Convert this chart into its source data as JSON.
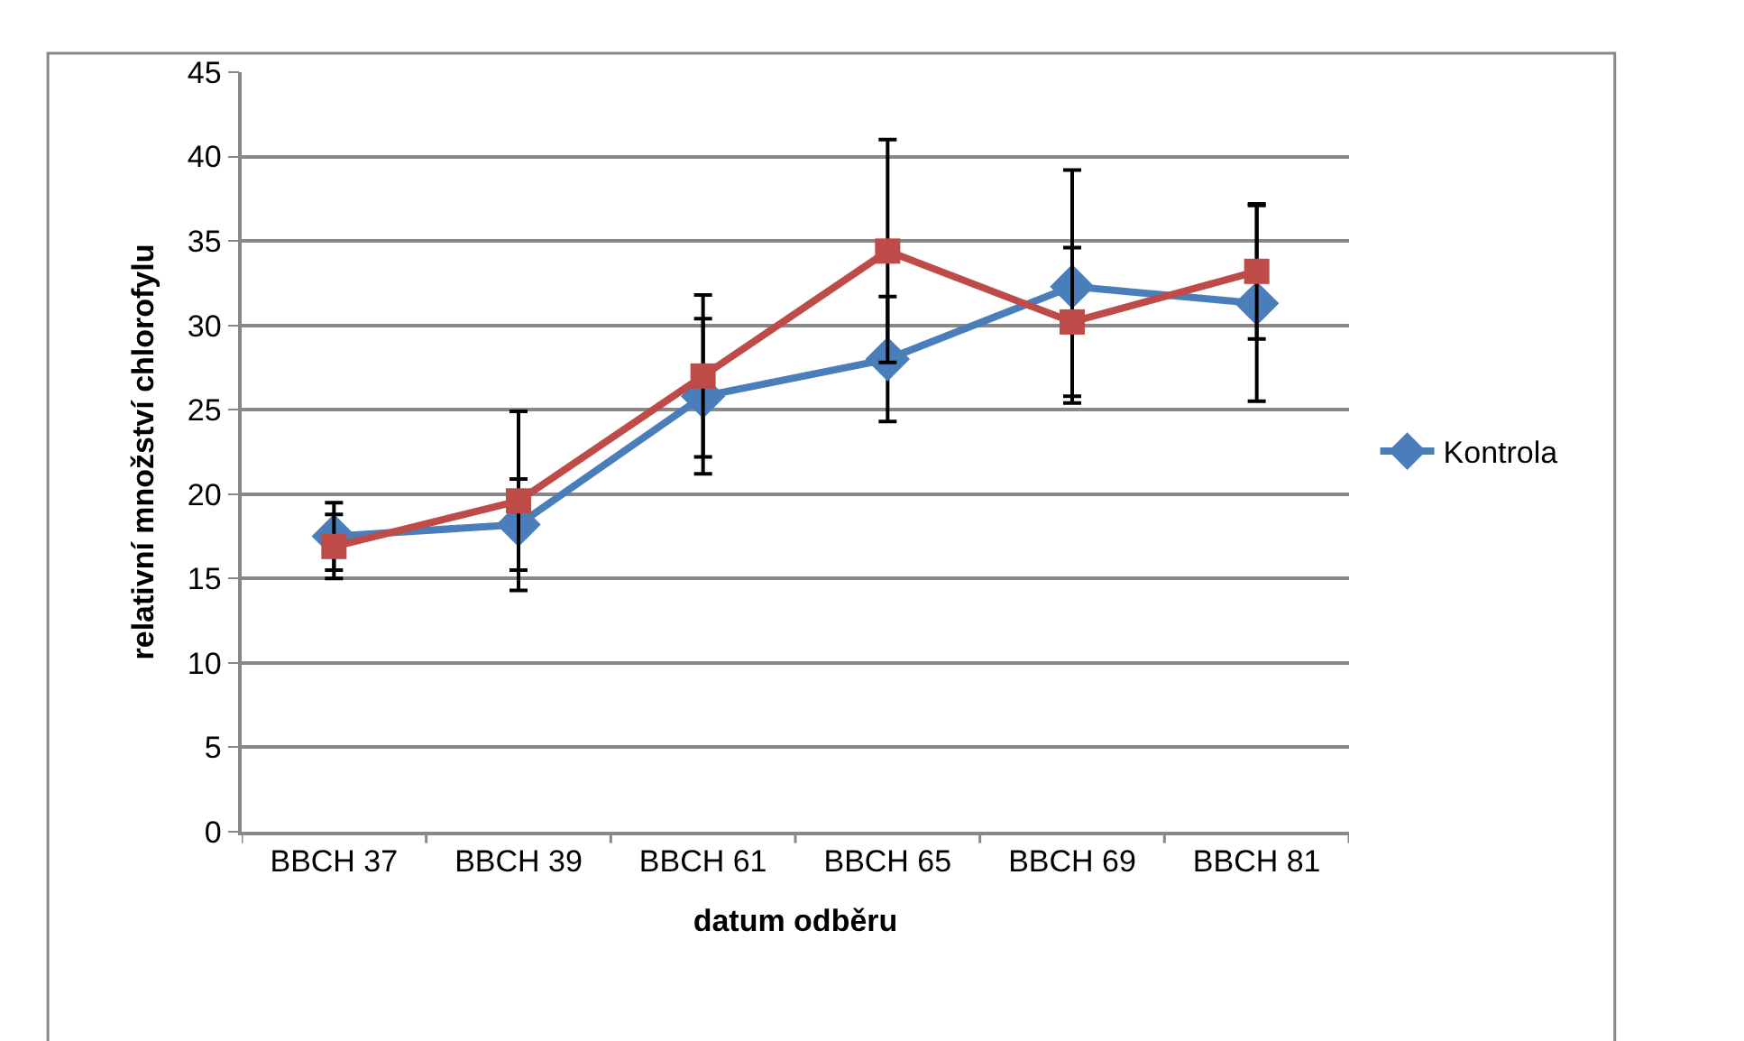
{
  "chart_data": {
    "type": "line",
    "xlabel": "datum odběru",
    "ylabel": "relativní množství chlorofylu",
    "categories": [
      "BBCH 37",
      "BBCH 39",
      "BBCH 61",
      "BBCH 65",
      "BBCH 69",
      "BBCH 81"
    ],
    "series": [
      {
        "name": "Kontrola",
        "color": "#4a7ebb",
        "marker": "diamond",
        "values": [
          17.5,
          18.2,
          25.8,
          28.0,
          32.3,
          31.3
        ],
        "errors": [
          2.0,
          2.7,
          4.6,
          3.7,
          6.9,
          5.8
        ]
      },
      {
        "color": "#be4b48",
        "marker": "square",
        "values": [
          16.9,
          19.6,
          27.0,
          34.4,
          30.2,
          33.2
        ],
        "errors": [
          1.9,
          5.3,
          4.8,
          6.6,
          4.4,
          4.0
        ]
      }
    ],
    "ylim": [
      0,
      45
    ],
    "yticks": [
      0,
      5,
      10,
      15,
      20,
      25,
      30,
      35,
      40,
      45
    ],
    "grid": "y",
    "legend": "right"
  }
}
